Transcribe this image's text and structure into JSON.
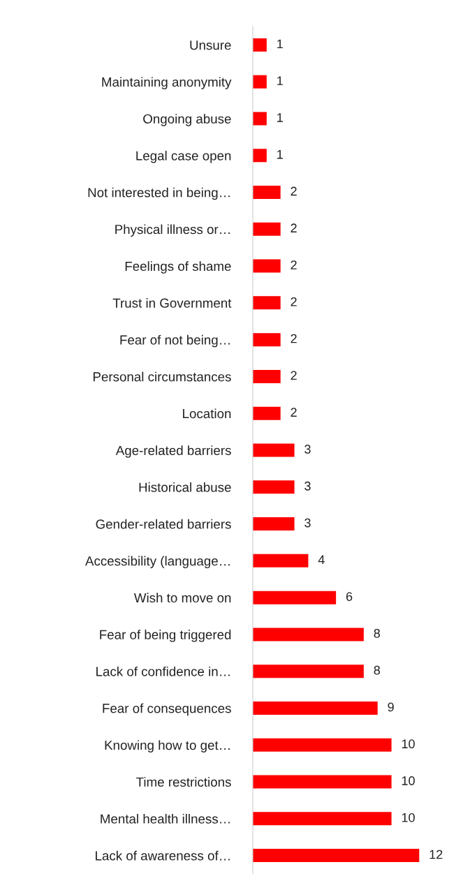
{
  "chart_data": {
    "type": "bar",
    "orientation": "horizontal",
    "categories": [
      "Unsure",
      "Maintaining anonymity",
      "Ongoing abuse",
      "Legal case open",
      "Not interested in being…",
      "Physical illness or…",
      "Feelings of shame",
      "Trust in Government",
      "Fear of not being…",
      "Personal circumstances",
      "Location",
      "Age-related barriers",
      "Historical abuse",
      "Gender-related barriers",
      "Accessibility (language…",
      "Wish to move on",
      "Fear of being triggered",
      "Lack of confidence in…",
      "Fear of consequences",
      "Knowing how to get…",
      "Time restrictions",
      "Mental health illness…",
      "Lack of awareness of…"
    ],
    "values": [
      1,
      1,
      1,
      1,
      2,
      2,
      2,
      2,
      2,
      2,
      2,
      3,
      3,
      3,
      4,
      6,
      8,
      8,
      9,
      10,
      10,
      10,
      12
    ],
    "color": "#ff0000",
    "tick_labels": "y",
    "data_labels": true,
    "grid": false,
    "legend": false
  }
}
